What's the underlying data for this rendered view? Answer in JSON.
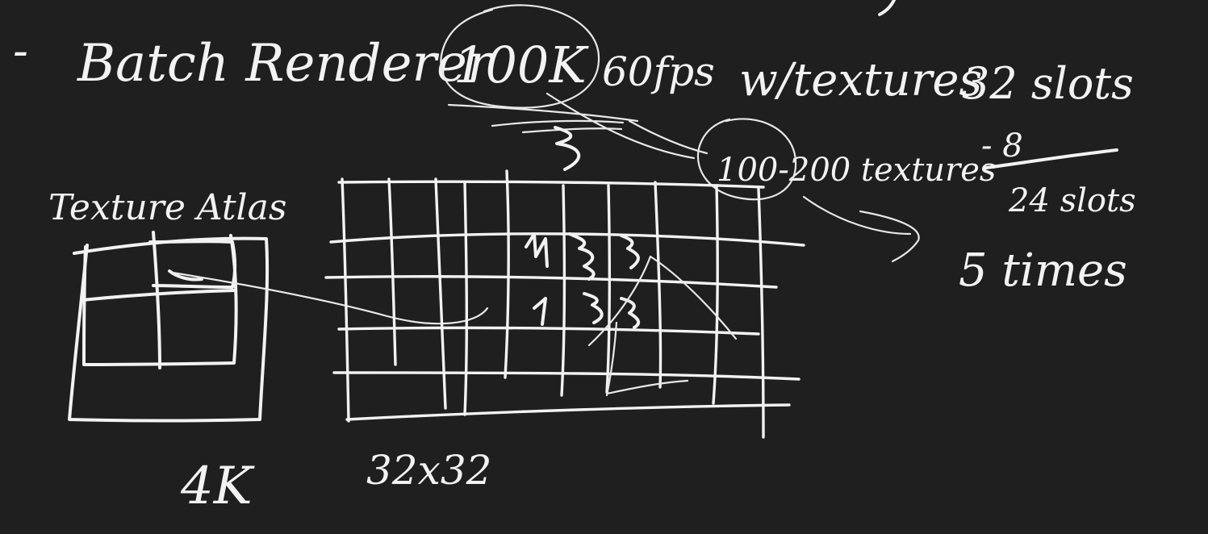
{
  "background_color": "#1f1f1f",
  "ink_color": "#f2f2f2",
  "notes": {
    "dash": "-",
    "batch_renderer": "Batch Renderer",
    "quad_count": "100K",
    "fps": "60fps",
    "with_textures": "w/textures",
    "total_slots": "32 slots",
    "reserved_slots": "- 8",
    "remaining_slots": "24 slots",
    "texture_count": "100-200 textures",
    "batch_count": "5 times",
    "texture_atlas": "Texture Atlas",
    "atlas_size": "4K",
    "tile_size": "32x32"
  }
}
